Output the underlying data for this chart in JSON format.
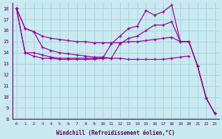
{
  "xlabel": "Windchill (Refroidissement éolien,°C)",
  "background_color": "#c8eaf0",
  "grid_color": "#aad4dc",
  "line_color": "#990099",
  "xlim": [
    -0.5,
    23.5
  ],
  "ylim": [
    8,
    18.5
  ],
  "yticks": [
    8,
    9,
    10,
    11,
    12,
    13,
    14,
    15,
    16,
    17,
    18
  ],
  "xticks": [
    0,
    1,
    2,
    3,
    4,
    5,
    6,
    7,
    8,
    9,
    10,
    11,
    12,
    13,
    14,
    15,
    16,
    17,
    18,
    19,
    20,
    21,
    22,
    23
  ],
  "line1_x": [
    0,
    1,
    2,
    3,
    4,
    5,
    6,
    7,
    8,
    9,
    10,
    11,
    12,
    13,
    14,
    15,
    16,
    17,
    18,
    19,
    20,
    21,
    22,
    23
  ],
  "line1_y": [
    18.0,
    16.2,
    15.9,
    15.5,
    15.3,
    15.2,
    15.1,
    15.0,
    15.0,
    14.9,
    14.9,
    14.9,
    14.9,
    15.0,
    15.0,
    15.1,
    15.2,
    15.3,
    15.4,
    15.0,
    15.0,
    12.8,
    9.9,
    8.5
  ],
  "line2_x": [
    0,
    1,
    2,
    3,
    4,
    5,
    6,
    7,
    8,
    9,
    10,
    11,
    12,
    13,
    14,
    15,
    16,
    17,
    18,
    19,
    20,
    21,
    22,
    23
  ],
  "line2_y": [
    18.0,
    14.0,
    14.0,
    13.8,
    13.6,
    13.5,
    13.5,
    13.5,
    13.5,
    13.5,
    13.5,
    13.5,
    14.8,
    15.3,
    15.5,
    16.0,
    16.5,
    16.5,
    16.8,
    15.0,
    15.0,
    12.8,
    9.9,
    8.5
  ],
  "line3_x": [
    0,
    1,
    2,
    3,
    4,
    5,
    6,
    7,
    8,
    9,
    10,
    11,
    12,
    13,
    14,
    15,
    16,
    17,
    18,
    19,
    20,
    21,
    22,
    23
  ],
  "line3_y": [
    18.0,
    14.0,
    13.7,
    13.5,
    13.5,
    13.4,
    13.4,
    13.4,
    13.4,
    13.4,
    13.5,
    14.8,
    15.5,
    16.2,
    16.4,
    17.8,
    17.4,
    17.7,
    18.3,
    15.0,
    15.0,
    12.8,
    9.9,
    8.5
  ],
  "line4_x": [
    0,
    1,
    2,
    3,
    4,
    5,
    6,
    7,
    8,
    9,
    10,
    11,
    12,
    13,
    14,
    15,
    16,
    17,
    18,
    19,
    20
  ],
  "line4_y": [
    18.0,
    16.2,
    15.9,
    14.5,
    14.2,
    14.0,
    13.9,
    13.8,
    13.7,
    13.6,
    13.6,
    13.5,
    13.5,
    13.4,
    13.4,
    13.4,
    13.4,
    13.4,
    13.5,
    13.6,
    13.7
  ]
}
